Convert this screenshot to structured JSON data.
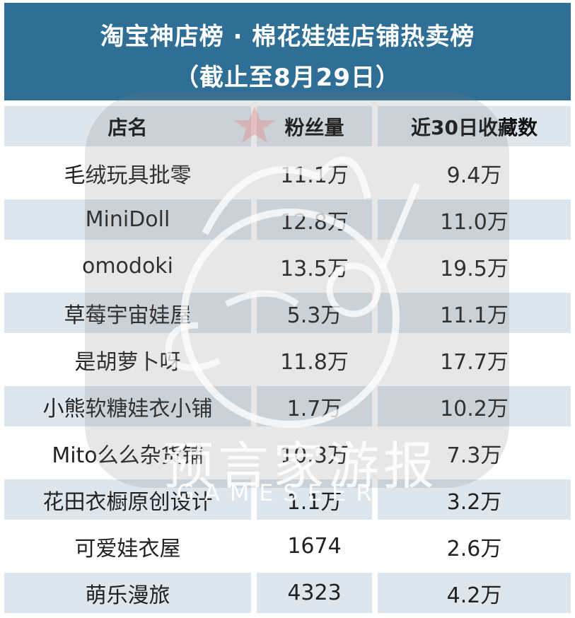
{
  "title_line1": "淘宝神店榜 · 棉花娃娃店铺热卖榜",
  "title_line2": "（截止至8月29日）",
  "columns": [
    "店名",
    "粉丝量",
    "近30日收藏数"
  ],
  "rows": [
    {
      "name": "毛绒玩具批零",
      "fans": "11.1万",
      "favorites": "9.4万"
    },
    {
      "name": "MiniDoll",
      "fans": "12.8万",
      "favorites": "11.0万"
    },
    {
      "name": "omodoki",
      "fans": "13.5万",
      "favorites": "19.5万"
    },
    {
      "name": "草莓宇宙娃屋",
      "fans": "5.3万",
      "favorites": "11.1万"
    },
    {
      "name": "是胡萝卜呀",
      "fans": "11.8万",
      "favorites": "17.7万"
    },
    {
      "name": "小熊软糖娃衣小铺",
      "fans": "1.7万",
      "favorites": "10.2万"
    },
    {
      "name": "Mito么么杂货铺",
      "fans": "10.3万",
      "favorites": "7.3万"
    },
    {
      "name": "花田衣橱原创设计",
      "fans": "1.1万",
      "favorites": "3.2万"
    },
    {
      "name": "可爱娃衣屋",
      "fans": "1674",
      "favorites": "2.6万"
    },
    {
      "name": "萌乐漫旅",
      "fans": "4323",
      "favorites": "4.2万"
    }
  ],
  "watermark": {
    "logo_text": "预言家游报",
    "logo_sub": "GAMESEER",
    "icon": "mascot-logo-icon"
  },
  "colors": {
    "header_bg": "#2f6f96",
    "row_shade": "#dde6ec"
  }
}
